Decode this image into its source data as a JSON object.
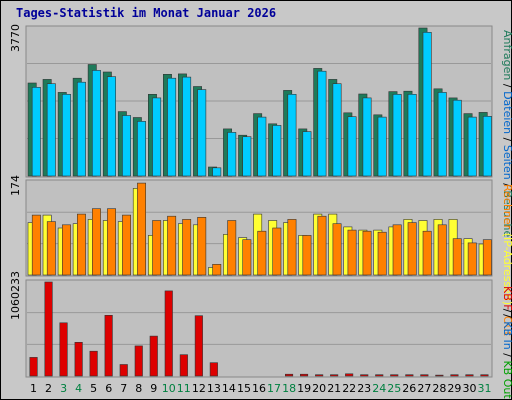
{
  "header": {
    "title": "Tages-Statistik im Monat Januar 2026"
  },
  "colors": {
    "panel_bg": "#c0c0c0",
    "frame_bg": "#c8c8c8",
    "grid": "#999999",
    "title": "#000099",
    "weekday_tick": "#000000",
    "weekend_tick": "#008040",
    "anfragen": "#1e7a5a",
    "dateien": "#00ccff",
    "rechner": "#ffff33",
    "out": "#ff8000",
    "kb_f": "#dd0000",
    "kb_out": "#00a000"
  },
  "chart_data": [
    {
      "type": "bar",
      "panel": "top",
      "ymax_label": "3770",
      "ylim": [
        0,
        3770
      ],
      "x": [
        "1",
        "2",
        "3",
        "4",
        "5",
        "6",
        "7",
        "8",
        "9",
        "10",
        "11",
        "12",
        "13",
        "14",
        "15",
        "16",
        "17",
        "18",
        "19",
        "20",
        "21",
        "22",
        "23",
        "24",
        "25",
        "26",
        "27",
        "28",
        "29",
        "30",
        "31"
      ],
      "weekend_days": [
        "3",
        "4",
        "10",
        "11",
        "17",
        "18",
        "24",
        "25",
        "31"
      ],
      "series": [
        {
          "name": "Anfragen",
          "color": "#1e7a5a",
          "values": [
            2370,
            2460,
            2130,
            2490,
            2840,
            2650,
            1640,
            1490,
            2080,
            2590,
            2600,
            2280,
            230,
            1200,
            1040,
            1590,
            1330,
            2180,
            1200,
            2740,
            2460,
            1610,
            2090,
            1560,
            2150,
            2160,
            3770,
            2220,
            1990,
            1590,
            1620
          ]
        },
        {
          "name": "Dateien",
          "color": "#00ccff",
          "values": [
            2260,
            2350,
            2080,
            2390,
            2690,
            2530,
            1540,
            1390,
            1990,
            2490,
            2520,
            2200,
            210,
            1110,
            1000,
            1500,
            1290,
            2080,
            1130,
            2670,
            2350,
            1510,
            1990,
            1500,
            2080,
            2080,
            3660,
            2130,
            1930,
            1500,
            1520
          ]
        }
      ],
      "legend": [
        "Anfragen",
        "/",
        "Dateien",
        "/",
        "Seiten",
        "/",
        "Besuche"
      ]
    },
    {
      "type": "bar",
      "panel": "middle",
      "ymax_label": "174",
      "ylim": [
        0,
        174
      ],
      "series": [
        {
          "name": "Rechner",
          "color": "#ffff33",
          "values": [
            98,
            112,
            88,
            96,
            104,
            102,
            100,
            162,
            74,
            102,
            96,
            94,
            14,
            76,
            70,
            114,
            102,
            98,
            74,
            114,
            114,
            90,
            84,
            84,
            90,
            104,
            102,
            104,
            104,
            68,
            58
          ]
        },
        {
          "name": "Out",
          "color": "#ff8000",
          "values": [
            112,
            100,
            94,
            114,
            124,
            124,
            112,
            172,
            102,
            110,
            104,
            108,
            20,
            102,
            66,
            82,
            88,
            104,
            74,
            110,
            96,
            84,
            82,
            80,
            94,
            98,
            82,
            94,
            68,
            60,
            66
          ]
        }
      ],
      "legend": [
        "Rechner",
        "(IP-Adressen)",
        "/",
        "Out"
      ]
    },
    {
      "type": "bar",
      "panel": "bottom",
      "ymax_label": "1060233",
      "ylim": [
        0,
        1060233
      ],
      "series": [
        {
          "name": "KB F",
          "color": "#dd0000",
          "values": [
            210000,
            1060233,
            600000,
            380000,
            280000,
            685000,
            130000,
            340000,
            450000,
            960000,
            240000,
            680000,
            150000,
            0,
            0,
            0,
            0,
            20000,
            20000,
            15000,
            15000,
            25000,
            15000,
            15000,
            15000,
            15000,
            15000,
            10000,
            15000,
            15000,
            15000
          ]
        }
      ],
      "legend": [
        "KB F",
        "/",
        "KB In",
        "/",
        "KB Out"
      ]
    }
  ]
}
